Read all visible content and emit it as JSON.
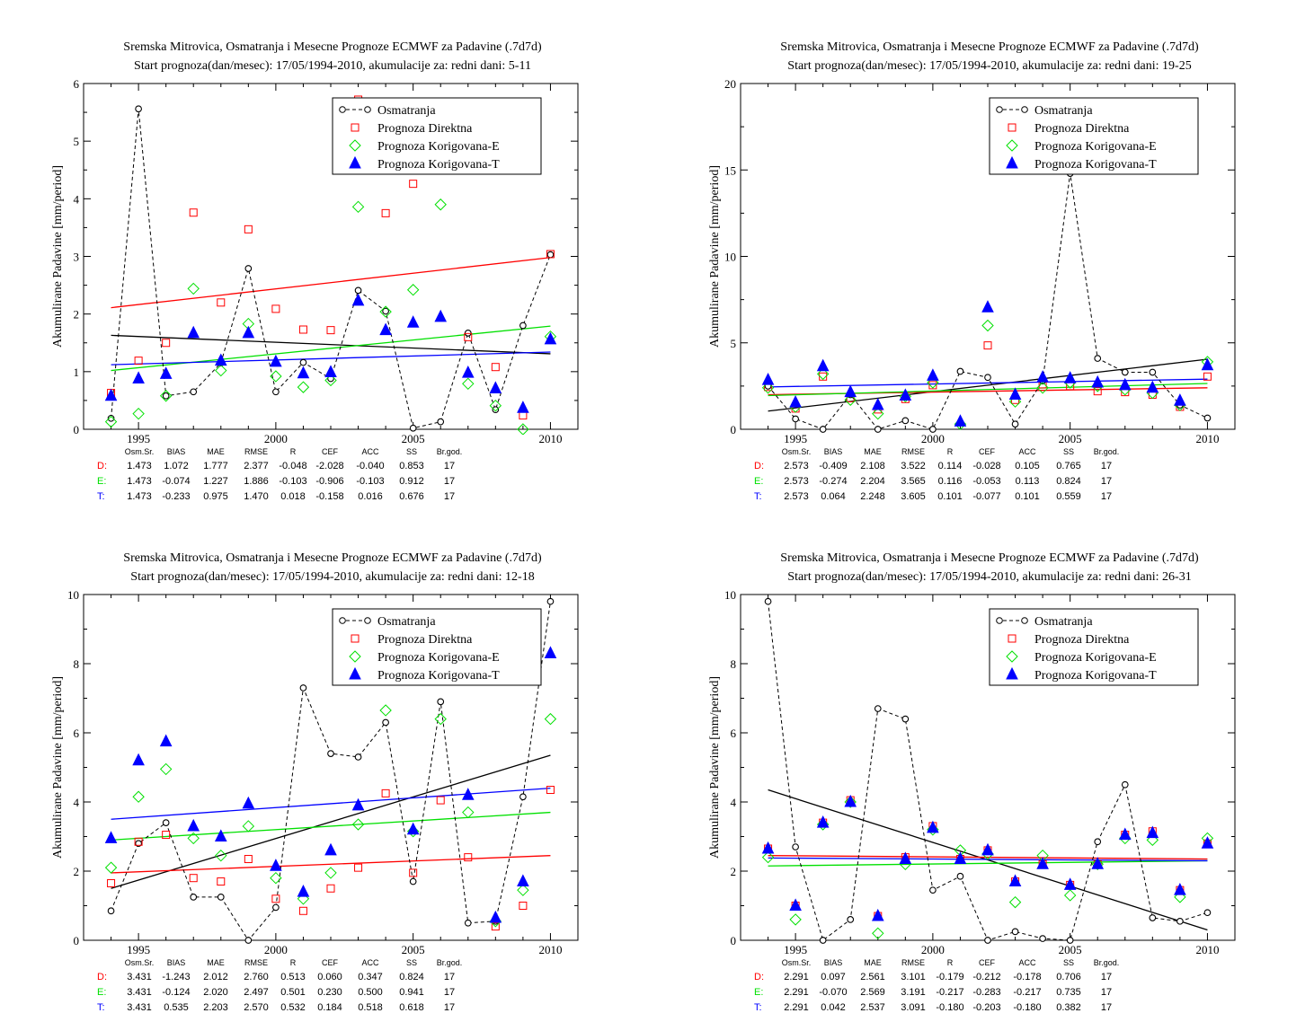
{
  "chart_data": [
    {
      "type": "scatter",
      "title": "Sremska Mitrovica, Osmatranja i Mesecne Prognoze ECMWF za Padavine (.7d7d)",
      "subtitle": "Start prognoza(dan/mesec): 17/05/1994-2010, akumulacije za: redni dani: 5-11",
      "ylabel": "Akumulirane Padavine [mm/period]",
      "xlim": [
        1993,
        2011
      ],
      "ylim": [
        0,
        6
      ],
      "x_ticks": [
        "1995",
        "2000",
        "2005",
        "2010"
      ],
      "y_ticks": [
        "0",
        "1",
        "2",
        "3",
        "4",
        "5",
        "6"
      ],
      "legend_position": "top-right",
      "x": [
        1994,
        1995,
        1996,
        1997,
        1998,
        1999,
        2000,
        2001,
        2002,
        2003,
        2004,
        2005,
        2006,
        2007,
        2008,
        2009,
        2010
      ],
      "series": [
        {
          "name": "Osmatranja",
          "color": "#000000",
          "marker": "circle-line",
          "values": [
            0.19,
            5.56,
            0.58,
            0.65,
            1.15,
            2.79,
            0.65,
            1.16,
            0.88,
            2.41,
            2.05,
            0.02,
            0.13,
            1.67,
            0.34,
            1.8,
            3.03
          ]
        },
        {
          "name": "Prognoza Direktna",
          "color": "#ff0000",
          "marker": "square",
          "values": [
            0.63,
            1.19,
            1.5,
            3.76,
            2.2,
            3.47,
            2.09,
            1.73,
            1.72,
            5.72,
            3.75,
            4.26,
            null,
            1.6,
            1.08,
            0.24,
            3.04
          ]
        },
        {
          "name": "Prognoza Korigovana-E",
          "color": "#00e000",
          "marker": "diamond",
          "values": [
            0.13,
            0.27,
            0.58,
            2.44,
            1.02,
            1.83,
            0.92,
            0.73,
            0.85,
            3.86,
            2.04,
            2.42,
            3.9,
            0.79,
            0.41,
            0.0,
            1.61
          ]
        },
        {
          "name": "Prognoza Korigovana-T",
          "color": "#0000ff",
          "marker": "triangle",
          "values": [
            0.58,
            0.88,
            0.96,
            1.67,
            1.19,
            1.67,
            1.17,
            0.97,
            0.99,
            2.23,
            1.72,
            1.85,
            1.95,
            0.98,
            0.71,
            0.37,
            1.56
          ]
        }
      ],
      "trends": [
        {
          "color": "#000000",
          "y1994": 1.63,
          "y2010": 1.31
        },
        {
          "color": "#ff0000",
          "y1994": 2.11,
          "y2010": 2.98
        },
        {
          "color": "#00e000",
          "y1994": 1.02,
          "y2010": 1.79
        },
        {
          "color": "#0000ff",
          "y1994": 1.12,
          "y2010": 1.34
        }
      ],
      "stats": {
        "headers": [
          "Osm.Sr.",
          "BIAS",
          "MAE",
          "RMSE",
          "R",
          "CEF",
          "ACC",
          "SS",
          "Br.god."
        ],
        "rows": [
          {
            "label": "D:",
            "color": "#ff0000",
            "values": [
              "1.473",
              "1.072",
              "1.777",
              "2.377",
              "-0.048",
              "-2.028",
              "-0.040",
              "0.853",
              "17"
            ]
          },
          {
            "label": "E:",
            "color": "#00e000",
            "values": [
              "1.473",
              "-0.074",
              "1.227",
              "1.886",
              "-0.103",
              "-0.906",
              "-0.103",
              "0.912",
              "17"
            ]
          },
          {
            "label": "T:",
            "color": "#0000ff",
            "values": [
              "1.473",
              "-0.233",
              "0.975",
              "1.470",
              "0.018",
              "-0.158",
              "0.016",
              "0.676",
              "17"
            ]
          }
        ]
      }
    },
    {
      "type": "scatter",
      "title": "Sremska Mitrovica, Osmatranja i Mesecne Prognoze ECMWF za Padavine (.7d7d)",
      "subtitle": "Start prognoza(dan/mesec): 17/05/1994-2010, akumulacije za: redni dani: 19-25",
      "ylabel": "Akumulirane Padavine [mm/period]",
      "xlim": [
        1993,
        2011
      ],
      "ylim": [
        0,
        20
      ],
      "x_ticks": [
        "1995",
        "2000",
        "2005",
        "2010"
      ],
      "y_ticks": [
        "0",
        "5",
        "10",
        "15",
        "20"
      ],
      "legend_position": "top-right",
      "x": [
        1994,
        1995,
        1996,
        1997,
        1998,
        1999,
        2000,
        2001,
        2002,
        2003,
        2004,
        2005,
        2006,
        2007,
        2008,
        2009,
        2010
      ],
      "series": [
        {
          "name": "Osmatranja",
          "color": "#000000",
          "marker": "circle-line",
          "values": [
            2.5,
            0.6,
            0.0,
            2.0,
            0.0,
            0.5,
            0.0,
            3.35,
            3.0,
            0.3,
            2.8,
            14.8,
            4.1,
            3.3,
            3.3,
            1.4,
            0.65
          ]
        },
        {
          "name": "Prognoza Direktna",
          "color": "#ff0000",
          "marker": "square",
          "values": [
            2.45,
            1.2,
            3.05,
            1.8,
            1.15,
            1.75,
            2.55,
            null,
            4.85,
            1.7,
            2.6,
            2.5,
            2.2,
            2.15,
            2.0,
            1.3,
            3.05
          ]
        },
        {
          "name": "Prognoza Korigovana-E",
          "color": "#00e000",
          "marker": "diamond",
          "values": [
            2.4,
            1.3,
            3.2,
            1.7,
            0.9,
            1.9,
            2.7,
            0.3,
            6.0,
            1.6,
            2.4,
            2.7,
            2.5,
            2.3,
            2.1,
            1.4,
            3.9
          ]
        },
        {
          "name": "Prognoza Korigovana-T",
          "color": "#0000ff",
          "marker": "triangle",
          "values": [
            2.85,
            1.55,
            3.65,
            2.15,
            1.4,
            1.95,
            3.1,
            0.45,
            7.05,
            2.0,
            3.0,
            2.95,
            2.7,
            2.55,
            2.4,
            1.65,
            3.7
          ]
        }
      ],
      "trends": [
        {
          "color": "#000000",
          "y1994": 1.05,
          "y2010": 4.05
        },
        {
          "color": "#ff0000",
          "y1994": 2.0,
          "y2010": 2.4
        },
        {
          "color": "#00e000",
          "y1994": 1.95,
          "y2010": 2.65
        },
        {
          "color": "#0000ff",
          "y1994": 2.45,
          "y2010": 2.9
        }
      ],
      "stats": {
        "headers": [
          "Osm.Sr.",
          "BIAS",
          "MAE",
          "RMSE",
          "R",
          "CEF",
          "ACC",
          "SS",
          "Br.god."
        ],
        "rows": [
          {
            "label": "D:",
            "color": "#ff0000",
            "values": [
              "2.573",
              "-0.409",
              "2.108",
              "3.522",
              "0.114",
              "-0.028",
              "0.105",
              "0.765",
              "17"
            ]
          },
          {
            "label": "E:",
            "color": "#00e000",
            "values": [
              "2.573",
              "-0.274",
              "2.204",
              "3.565",
              "0.116",
              "-0.053",
              "0.113",
              "0.824",
              "17"
            ]
          },
          {
            "label": "T:",
            "color": "#0000ff",
            "values": [
              "2.573",
              "0.064",
              "2.248",
              "3.605",
              "0.101",
              "-0.077",
              "0.101",
              "0.559",
              "17"
            ]
          }
        ]
      }
    },
    {
      "type": "scatter",
      "title": "Sremska Mitrovica, Osmatranja i Mesecne Prognoze ECMWF za Padavine (.7d7d)",
      "subtitle": "Start prognoza(dan/mesec): 17/05/1994-2010, akumulacije za: redni dani: 12-18",
      "ylabel": "Akumulirane Padavine [mm/period]",
      "xlim": [
        1993,
        2011
      ],
      "ylim": [
        0,
        10
      ],
      "x_ticks": [
        "1995",
        "2000",
        "2005",
        "2010"
      ],
      "y_ticks": [
        "0",
        "2",
        "4",
        "6",
        "8",
        "10"
      ],
      "legend_position": "top-right",
      "x": [
        1994,
        1995,
        1996,
        1997,
        1998,
        1999,
        2000,
        2001,
        2002,
        2003,
        2004,
        2005,
        2006,
        2007,
        2008,
        2009,
        2010
      ],
      "series": [
        {
          "name": "Osmatranja",
          "color": "#000000",
          "marker": "circle-line",
          "values": [
            0.85,
            2.8,
            3.4,
            1.25,
            1.25,
            0.0,
            0.95,
            7.3,
            5.4,
            5.3,
            6.3,
            1.7,
            6.9,
            0.5,
            0.55,
            4.15,
            9.8
          ]
        },
        {
          "name": "Prognoza Direktna",
          "color": "#ff0000",
          "marker": "square",
          "values": [
            1.65,
            2.85,
            3.05,
            1.8,
            1.7,
            2.35,
            1.2,
            0.85,
            1.5,
            2.1,
            4.25,
            1.95,
            4.05,
            2.4,
            0.4,
            1.0,
            4.35
          ]
        },
        {
          "name": "Prognoza Korigovana-E",
          "color": "#00e000",
          "marker": "diamond",
          "values": [
            2.1,
            4.15,
            4.95,
            2.95,
            2.45,
            3.3,
            1.8,
            1.2,
            1.95,
            3.35,
            6.65,
            3.15,
            6.4,
            3.7,
            0.55,
            1.45,
            6.4
          ]
        },
        {
          "name": "Prognoza Korigovana-T",
          "color": "#0000ff",
          "marker": "triangle",
          "values": [
            2.95,
            5.2,
            5.75,
            3.3,
            3.0,
            3.95,
            2.15,
            1.4,
            2.6,
            3.9,
            null,
            3.2,
            null,
            4.2,
            0.65,
            1.7,
            8.3
          ]
        }
      ],
      "trends": [
        {
          "color": "#000000",
          "y1994": 1.5,
          "y2010": 5.35
        },
        {
          "color": "#ff0000",
          "y1994": 1.95,
          "y2010": 2.45
        },
        {
          "color": "#00e000",
          "y1994": 2.9,
          "y2010": 3.7
        },
        {
          "color": "#0000ff",
          "y1994": 3.5,
          "y2010": 4.4
        }
      ],
      "stats": {
        "headers": [
          "Osm.Sr.",
          "BIAS",
          "MAE",
          "RMSE",
          "R",
          "CEF",
          "ACC",
          "SS",
          "Br.god."
        ],
        "rows": [
          {
            "label": "D:",
            "color": "#ff0000",
            "values": [
              "3.431",
              "-1.243",
              "2.012",
              "2.760",
              "0.513",
              "0.060",
              "0.347",
              "0.824",
              "17"
            ]
          },
          {
            "label": "E:",
            "color": "#00e000",
            "values": [
              "3.431",
              "-0.124",
              "2.020",
              "2.497",
              "0.501",
              "0.230",
              "0.500",
              "0.941",
              "17"
            ]
          },
          {
            "label": "T:",
            "color": "#0000ff",
            "values": [
              "3.431",
              "0.535",
              "2.203",
              "2.570",
              "0.532",
              "0.184",
              "0.518",
              "0.618",
              "17"
            ]
          }
        ]
      }
    },
    {
      "type": "scatter",
      "title": "Sremska Mitrovica, Osmatranja i Mesecne Prognoze ECMWF za Padavine (.7d7d)",
      "subtitle": "Start prognoza(dan/mesec): 17/05/1994-2010, akumulacije za: redni dani: 26-31",
      "ylabel": "Akumulirane Padavine [mm/period]",
      "xlim": [
        1993,
        2011
      ],
      "ylim": [
        0,
        10
      ],
      "x_ticks": [
        "1995",
        "2000",
        "2005",
        "2010"
      ],
      "y_ticks": [
        "0",
        "2",
        "4",
        "6",
        "8",
        "10"
      ],
      "legend_position": "top-right",
      "x": [
        1994,
        1995,
        1996,
        1997,
        1998,
        1999,
        2000,
        2001,
        2002,
        2003,
        2004,
        2005,
        2006,
        2007,
        2008,
        2009,
        2010
      ],
      "series": [
        {
          "name": "Osmatranja",
          "color": "#000000",
          "marker": "circle-line",
          "values": [
            9.8,
            2.7,
            0.0,
            0.6,
            6.7,
            6.4,
            1.45,
            1.85,
            0.0,
            0.25,
            0.05,
            0.0,
            2.85,
            4.5,
            0.65,
            0.55,
            0.8
          ]
        },
        {
          "name": "Prognoza Direktna",
          "color": "#ff0000",
          "marker": "square",
          "values": [
            2.65,
            1.0,
            3.4,
            4.05,
            0.7,
            2.4,
            3.3,
            2.35,
            2.6,
            1.7,
            2.2,
            1.6,
            2.2,
            3.05,
            3.15,
            1.45,
            2.8
          ]
        },
        {
          "name": "Prognoza Korigovana-E",
          "color": "#00e000",
          "marker": "diamond",
          "values": [
            2.4,
            0.6,
            3.35,
            4.0,
            0.2,
            2.2,
            3.2,
            2.6,
            2.5,
            1.1,
            2.45,
            1.3,
            2.2,
            2.95,
            2.9,
            1.25,
            2.95
          ]
        },
        {
          "name": "Prognoza Korigovana-T",
          "color": "#0000ff",
          "marker": "triangle",
          "values": [
            2.65,
            1.0,
            3.4,
            4.0,
            0.7,
            2.35,
            3.25,
            2.35,
            2.6,
            1.7,
            2.2,
            1.6,
            2.2,
            3.05,
            3.1,
            1.45,
            2.8
          ]
        }
      ],
      "trends": [
        {
          "color": "#000000",
          "y1994": 4.35,
          "y2010": 0.3
        },
        {
          "color": "#ff0000",
          "y1994": 2.45,
          "y2010": 2.35
        },
        {
          "color": "#00e000",
          "y1994": 2.15,
          "y2010": 2.3
        },
        {
          "color": "#0000ff",
          "y1994": 2.38,
          "y2010": 2.3
        }
      ],
      "stats": {
        "headers": [
          "Osm.Sr.",
          "BIAS",
          "MAE",
          "RMSE",
          "R",
          "CEF",
          "ACC",
          "SS",
          "Br.god."
        ],
        "rows": [
          {
            "label": "D:",
            "color": "#ff0000",
            "values": [
              "2.291",
              "0.097",
              "2.561",
              "3.101",
              "-0.179",
              "-0.212",
              "-0.178",
              "0.706",
              "17"
            ]
          },
          {
            "label": "E:",
            "color": "#00e000",
            "values": [
              "2.291",
              "-0.070",
              "2.569",
              "3.191",
              "-0.217",
              "-0.283",
              "-0.217",
              "0.735",
              "17"
            ]
          },
          {
            "label": "T:",
            "color": "#0000ff",
            "values": [
              "2.291",
              "0.042",
              "2.537",
              "3.091",
              "-0.180",
              "-0.203",
              "-0.180",
              "0.382",
              "17"
            ]
          }
        ]
      }
    }
  ]
}
